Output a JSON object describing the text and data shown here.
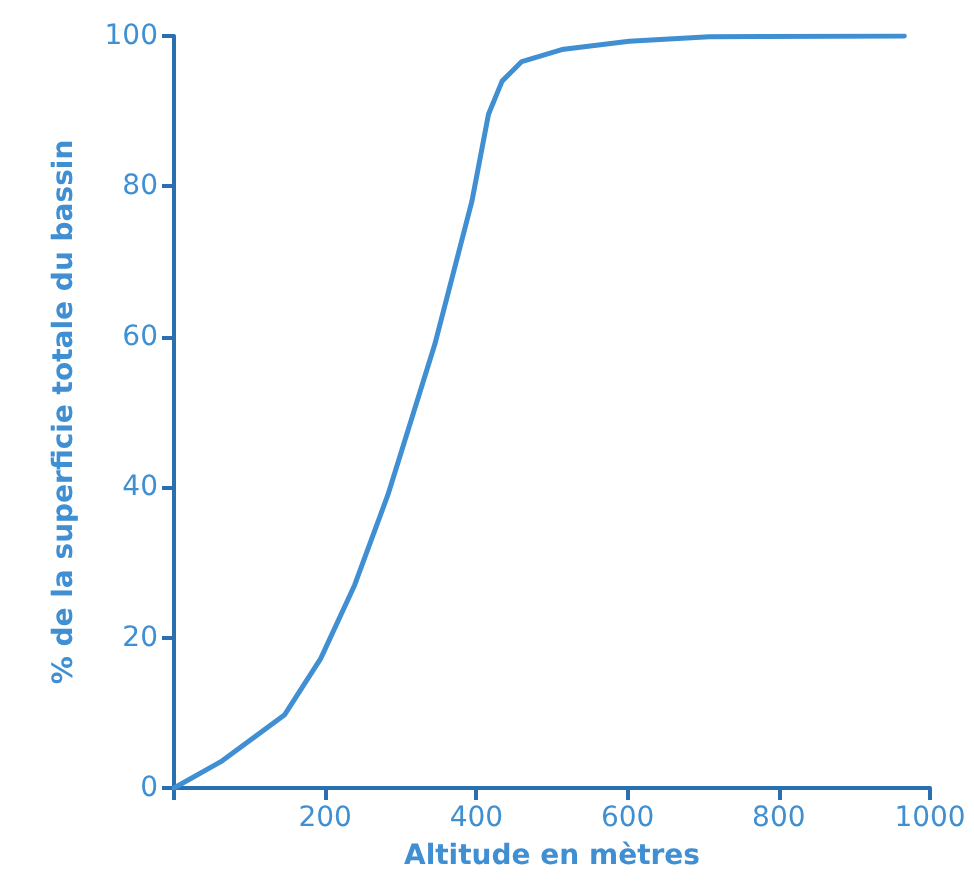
{
  "chart_data": {
    "type": "line",
    "xlabel": "Altitude en mètres",
    "ylabel": "% de la superficie totale du bassin",
    "x": [
      0,
      62,
      146,
      194,
      239,
      283,
      345,
      394,
      416,
      434,
      460,
      513,
      602,
      708,
      966
    ],
    "series": [
      {
        "color": "#3f8fd2",
        "values": [
          0,
          3.5,
          9.7,
          17.2,
          27,
          39,
          59,
          78,
          89.6,
          94,
          96.6,
          98.2,
          99.3,
          99.9,
          100
        ]
      }
    ],
    "xlim": [
      0,
      1000
    ],
    "xticks": [
      {
        "value": 0,
        "label": null
      },
      200,
      400,
      600,
      800,
      1000
    ],
    "ylim": [
      0,
      100
    ],
    "yticks": [
      0,
      20,
      40,
      60,
      80,
      100
    ],
    "grid": false,
    "marker": "none",
    "line_style": "solid"
  }
}
